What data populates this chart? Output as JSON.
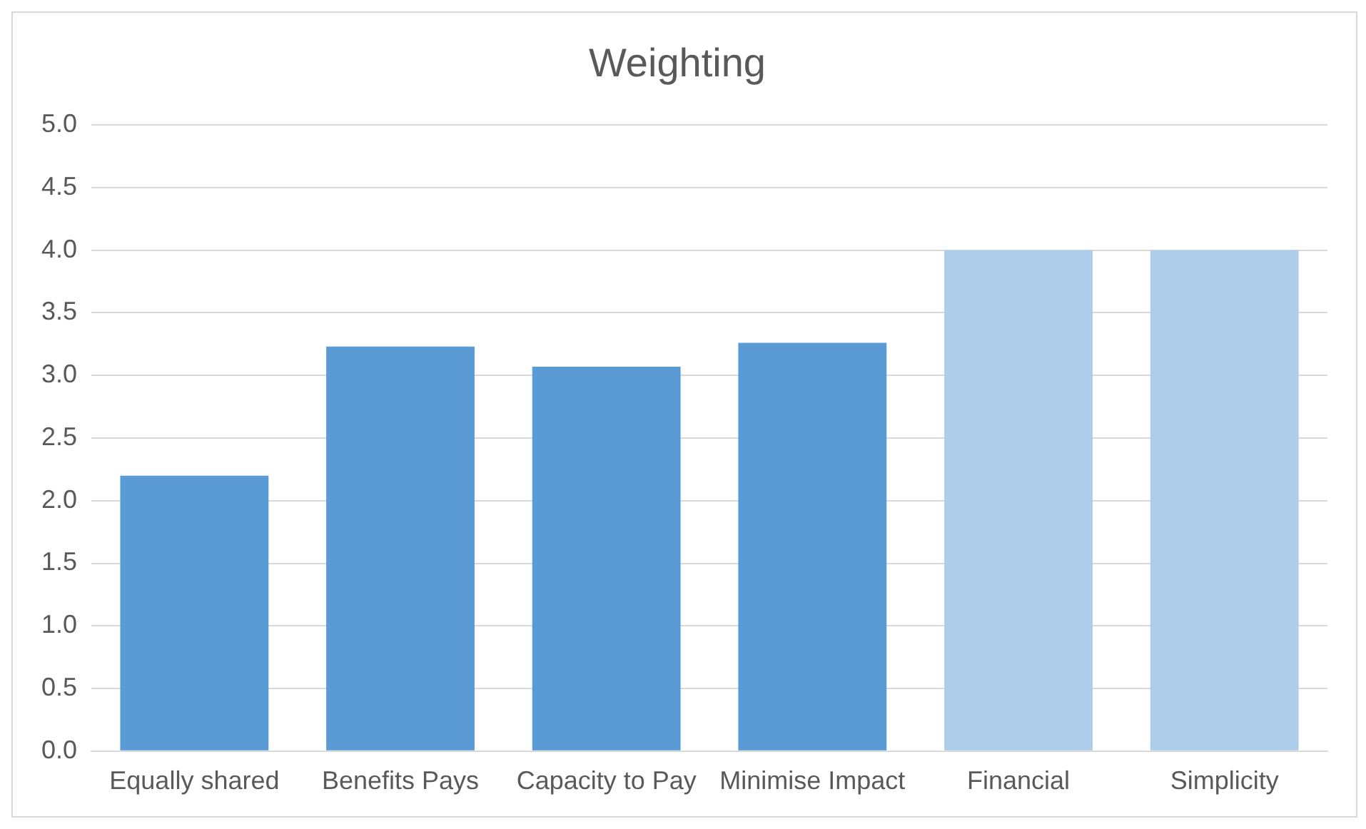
{
  "chart_data": {
    "type": "bar",
    "title": "Weighting",
    "categories": [
      "Equally shared",
      "Benefits Pays",
      "Capacity to Pay",
      "Minimise Impact",
      "Financial",
      "Simplicity"
    ],
    "values": [
      2.2,
      3.23,
      3.07,
      3.26,
      4.0,
      4.0
    ],
    "colors": [
      "#5b9bd5",
      "#5b9bd5",
      "#5b9bd5",
      "#5b9bd5",
      "#aecdea",
      "#aecdea"
    ],
    "ylim": [
      0,
      5
    ],
    "yticks": [
      {
        "value": 0,
        "label": "0.0"
      },
      {
        "value": 0.5,
        "label": "0.5"
      },
      {
        "value": 1,
        "label": "1.0"
      },
      {
        "value": 1.5,
        "label": "1.5"
      },
      {
        "value": 2,
        "label": "2.0"
      },
      {
        "value": 2.5,
        "label": "2.5"
      },
      {
        "value": 3,
        "label": "3.0"
      },
      {
        "value": 3.5,
        "label": "3.5"
      },
      {
        "value": 4,
        "label": "4.0"
      },
      {
        "value": 4.5,
        "label": "4.5"
      },
      {
        "value": 5,
        "label": "5.0"
      }
    ],
    "grid": "y",
    "legend": false
  }
}
